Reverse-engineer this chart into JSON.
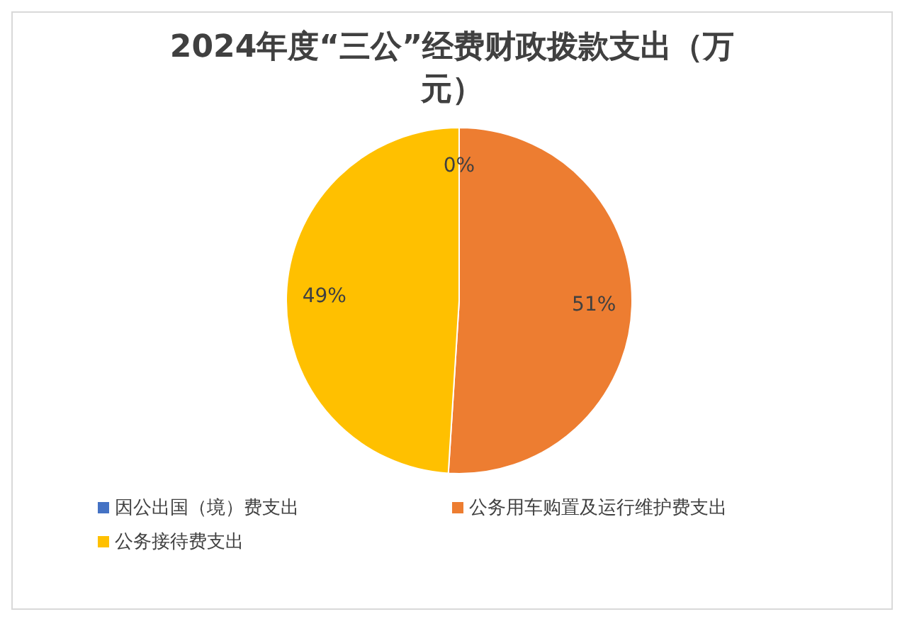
{
  "chart_data": {
    "type": "pie",
    "title": "2024年度“三公”经费财政拨款支出（万元）",
    "categories": [
      "因公出国（境）费支出",
      "公务用车购置及运行维护费支出",
      "公务接待费支出"
    ],
    "values": [
      0,
      51,
      49
    ],
    "colors": [
      "#4472c4",
      "#ed7d31",
      "#ffc000"
    ],
    "value_labels": [
      "0%",
      "51%",
      "49%"
    ],
    "legend": "bottom"
  }
}
